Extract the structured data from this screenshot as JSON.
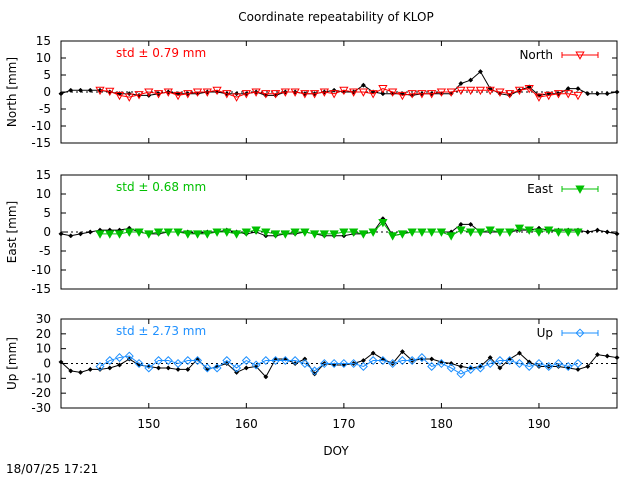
{
  "title": "Coordinate repeatability of KLOP",
  "timestamp": "18/07/25 17:21",
  "xlabel": "DOY",
  "colors": {
    "north": "#ff0000",
    "east": "#00c000",
    "up": "#1e90ff",
    "reference": "#000000"
  },
  "chart_data": [
    {
      "type": "line",
      "ylabel": "North [mm]",
      "ylim": [
        -15,
        15
      ],
      "yticks": [
        15,
        10,
        5,
        0,
        -5,
        -10,
        -15
      ],
      "xlim": [
        141,
        198
      ],
      "xticks": [
        150,
        160,
        170,
        180,
        190
      ],
      "std_text": "std ± 0.79 mm",
      "legend": {
        "label": "North",
        "position": "top-right"
      },
      "series": [
        {
          "name": "North",
          "color": "#ff0000",
          "marker": "triangle-down-open",
          "x": [
            145,
            146,
            147,
            148,
            149,
            150,
            151,
            152,
            153,
            154,
            155,
            156,
            157,
            158,
            159,
            160,
            161,
            162,
            163,
            164,
            165,
            166,
            167,
            168,
            169,
            170,
            171,
            172,
            173,
            174,
            175,
            176,
            177,
            178,
            179,
            180,
            181,
            182,
            183,
            184,
            185,
            186,
            187,
            188,
            189,
            190,
            191,
            192,
            193,
            194
          ],
          "y": [
            0.5,
            0.2,
            -1,
            -1.5,
            -0.8,
            0,
            -0.5,
            0,
            -1,
            -0.5,
            0,
            0,
            0.5,
            -0.5,
            -1.5,
            -0.5,
            0,
            -0.5,
            -0.5,
            0,
            0,
            -0.5,
            -0.5,
            0,
            -0.5,
            0.5,
            0,
            0,
            -0.5,
            1,
            0,
            -1,
            -0.5,
            -0.5,
            -0.5,
            0,
            0,
            0.5,
            0.5,
            0.5,
            0.5,
            0,
            -0.5,
            0.5,
            1,
            -1.5,
            -1,
            -0.5,
            -0.5,
            -1
          ]
        },
        {
          "name": "",
          "color": "#000000",
          "marker": "diamond-filled",
          "x": [
            141,
            142,
            143,
            144,
            145,
            146,
            147,
            148,
            149,
            150,
            151,
            152,
            153,
            154,
            155,
            156,
            157,
            158,
            159,
            160,
            161,
            162,
            163,
            164,
            165,
            166,
            167,
            168,
            169,
            170,
            171,
            172,
            173,
            174,
            175,
            176,
            177,
            178,
            179,
            180,
            181,
            182,
            183,
            184,
            185,
            186,
            187,
            188,
            189,
            190,
            191,
            192,
            193,
            194,
            195,
            196,
            197,
            198
          ],
          "y": [
            -0.5,
            0.5,
            0.5,
            0.5,
            0.5,
            0,
            -0.5,
            -0.5,
            -1,
            -1,
            -0.5,
            0,
            -0.5,
            -0.5,
            -0.5,
            0,
            0,
            -0.5,
            -0.5,
            -0.5,
            0,
            -1,
            -1,
            0,
            0,
            -0.5,
            -0.5,
            0,
            0.5,
            0,
            0,
            2,
            0,
            -0.5,
            -0.5,
            -0.5,
            -1,
            -0.5,
            -0.5,
            -0.5,
            -0.5,
            2.5,
            3.5,
            6,
            1,
            -0.5,
            -1,
            0.5,
            1.5,
            -1,
            -0.5,
            -0.5,
            1,
            1,
            -0.5,
            -0.5,
            -0.5,
            0
          ]
        }
      ]
    },
    {
      "type": "line",
      "ylabel": "East [mm]",
      "ylim": [
        -15,
        15
      ],
      "yticks": [
        15,
        10,
        5,
        0,
        -5,
        -10,
        -15
      ],
      "xlim": [
        141,
        198
      ],
      "xticks": [
        150,
        160,
        170,
        180,
        190
      ],
      "std_text": "std ± 0.68 mm",
      "legend": {
        "label": "East",
        "position": "top-right"
      },
      "series": [
        {
          "name": "East",
          "color": "#00c000",
          "marker": "triangle-down-filled",
          "x": [
            145,
            146,
            147,
            148,
            149,
            150,
            151,
            152,
            153,
            154,
            155,
            156,
            157,
            158,
            159,
            160,
            161,
            162,
            163,
            164,
            165,
            166,
            167,
            168,
            169,
            170,
            171,
            172,
            173,
            174,
            175,
            176,
            177,
            178,
            179,
            180,
            181,
            182,
            183,
            184,
            185,
            186,
            187,
            188,
            189,
            190,
            191,
            192,
            193,
            194
          ],
          "y": [
            -0.5,
            -0.5,
            -0.5,
            0,
            0,
            -0.5,
            0,
            0,
            0,
            -0.5,
            -0.5,
            -0.5,
            0,
            0,
            -0.5,
            0,
            0.5,
            0,
            -0.5,
            -0.5,
            0,
            0,
            -0.5,
            -0.5,
            -0.5,
            0,
            0,
            -0.5,
            0,
            2.5,
            -1,
            -0.5,
            0,
            0,
            0,
            0,
            -1,
            0.5,
            0,
            0,
            0.5,
            0,
            0,
            1,
            0.5,
            0,
            0.5,
            0,
            0,
            0
          ]
        },
        {
          "name": "",
          "color": "#000000",
          "marker": "diamond-filled",
          "x": [
            141,
            142,
            143,
            144,
            145,
            146,
            147,
            148,
            149,
            150,
            151,
            152,
            153,
            154,
            155,
            156,
            157,
            158,
            159,
            160,
            161,
            162,
            163,
            164,
            165,
            166,
            167,
            168,
            169,
            170,
            171,
            172,
            173,
            174,
            175,
            176,
            177,
            178,
            179,
            180,
            181,
            182,
            183,
            184,
            185,
            186,
            187,
            188,
            189,
            190,
            191,
            192,
            193,
            194,
            195,
            196,
            197,
            198
          ],
          "y": [
            -0.5,
            -1,
            -0.5,
            0,
            0.5,
            0.5,
            0.5,
            1,
            0,
            -0.5,
            -0.5,
            0,
            0,
            0,
            -0.5,
            0,
            0,
            0.5,
            0,
            -0.5,
            0,
            -1,
            -1,
            -0.5,
            -0.5,
            0,
            -0.5,
            -1,
            -1,
            -1,
            -0.5,
            -0.5,
            0,
            3.5,
            -1,
            -0.5,
            0,
            0,
            0,
            0,
            0,
            2,
            2,
            0,
            0,
            0,
            0,
            0.5,
            0.5,
            1,
            0.5,
            0.5,
            0.5,
            0.5,
            0,
            0.5,
            0,
            -0.5
          ]
        }
      ]
    },
    {
      "type": "line",
      "ylabel": "Up [mm]",
      "ylim": [
        -30,
        30
      ],
      "yticks": [
        30,
        20,
        10,
        0,
        -10,
        -20,
        -30
      ],
      "xlim": [
        141,
        198
      ],
      "xticks": [
        150,
        160,
        170,
        180,
        190
      ],
      "std_text": "std ± 2.73 mm",
      "legend": {
        "label": "Up",
        "position": "top-right"
      },
      "series": [
        {
          "name": "Up",
          "color": "#1e90ff",
          "marker": "diamond-open",
          "x": [
            145,
            146,
            147,
            148,
            149,
            150,
            151,
            152,
            153,
            154,
            155,
            156,
            157,
            158,
            159,
            160,
            161,
            162,
            163,
            164,
            165,
            166,
            167,
            168,
            169,
            170,
            171,
            172,
            173,
            174,
            175,
            176,
            177,
            178,
            179,
            180,
            181,
            182,
            183,
            184,
            185,
            186,
            187,
            188,
            189,
            190,
            191,
            192,
            193,
            194
          ],
          "y": [
            -2,
            2,
            4,
            5,
            0,
            -3,
            2,
            2,
            0,
            2,
            2,
            -3,
            -3,
            2,
            -3,
            2,
            -1,
            2,
            2,
            2,
            2,
            0,
            -5,
            0,
            0,
            0,
            0,
            -2,
            2,
            2,
            0,
            2,
            2,
            4,
            -2,
            0,
            -3,
            -7,
            -4,
            -3,
            0,
            2,
            2,
            0,
            -2,
            0,
            -2,
            0,
            -2,
            0
          ]
        },
        {
          "name": "",
          "color": "#000000",
          "marker": "diamond-filled",
          "x": [
            141,
            142,
            143,
            144,
            145,
            146,
            147,
            148,
            149,
            150,
            151,
            152,
            153,
            154,
            155,
            156,
            157,
            158,
            159,
            160,
            161,
            162,
            163,
            164,
            165,
            166,
            167,
            168,
            169,
            170,
            171,
            172,
            173,
            174,
            175,
            176,
            177,
            178,
            179,
            180,
            181,
            182,
            183,
            184,
            185,
            186,
            187,
            188,
            189,
            190,
            191,
            192,
            193,
            194,
            195,
            196,
            197,
            198
          ],
          "y": [
            1,
            -5,
            -6,
            -4,
            -4,
            -3,
            -1,
            3,
            -1,
            -2,
            -3,
            -3,
            -4,
            -4,
            3,
            -4,
            -2,
            0,
            -6,
            -3,
            -2,
            -9,
            3,
            3,
            0,
            3,
            -7,
            0,
            -1,
            -1,
            0,
            2,
            7,
            3,
            0,
            8,
            2,
            3,
            3,
            1,
            0,
            -2,
            -3,
            -2,
            4,
            -3,
            3,
            7,
            1,
            -2,
            -2,
            -2,
            -3,
            -4,
            -2,
            6,
            5,
            4
          ]
        }
      ]
    }
  ]
}
